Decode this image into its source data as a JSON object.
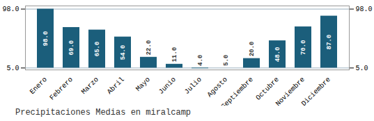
{
  "chart_data": {
    "type": "bar",
    "title": "Precipitaciones Medias en miralcamp",
    "categories": [
      "Enero",
      "Febrero",
      "Marzo",
      "Abril",
      "Mayo",
      "Junio",
      "Julio",
      "Agosto",
      "Septiembre",
      "Octubre",
      "Noviembre",
      "Diciembre"
    ],
    "values": [
      98.0,
      69.0,
      65.0,
      54.0,
      22.0,
      11.0,
      4.0,
      5.0,
      20.0,
      48.0,
      70.0,
      87.0
    ],
    "value_labels": [
      "98.0",
      "69.0",
      "65.0",
      "54.0",
      "22.0",
      "11.0",
      "4.0",
      "5.0",
      "20.0",
      "48.0",
      "70.0",
      "87.0"
    ],
    "bottom": 5.0,
    "color": "#1b5e7b",
    "ylim": [
      2.0,
      103.0
    ],
    "yticks": [
      {
        "value": 5.0,
        "label": "5.0"
      },
      {
        "value": 98.0,
        "label": "98.0"
      }
    ],
    "grid": true,
    "data_labels": true
  }
}
